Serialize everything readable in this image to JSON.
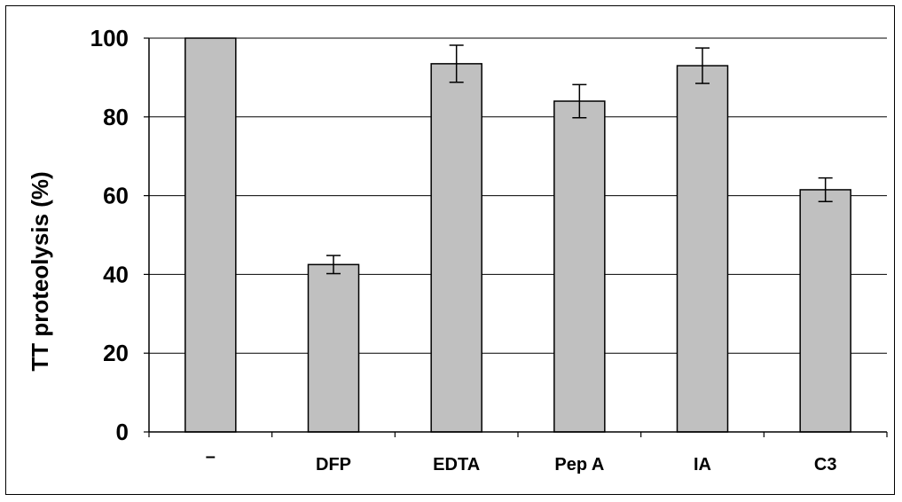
{
  "chart_data": {
    "type": "bar",
    "title": "",
    "xlabel": "",
    "ylabel": "TT proteolysis (%)",
    "categories": [
      "–",
      "DFP",
      "EDTA",
      "Pep A",
      "IA",
      "C3"
    ],
    "values": [
      100,
      42.5,
      93.5,
      84,
      93,
      61.5
    ],
    "errors": [
      0,
      2.3,
      4.7,
      4.2,
      4.5,
      3
    ],
    "ylim": [
      0,
      100
    ],
    "yticks": [
      0,
      20,
      40,
      60,
      80,
      100
    ],
    "grid": true,
    "legend": "none",
    "colors": {
      "bar_fill": "#c0c0c0",
      "bar_stroke": "#000000",
      "grid": "#000000",
      "axis": "#000000"
    }
  }
}
